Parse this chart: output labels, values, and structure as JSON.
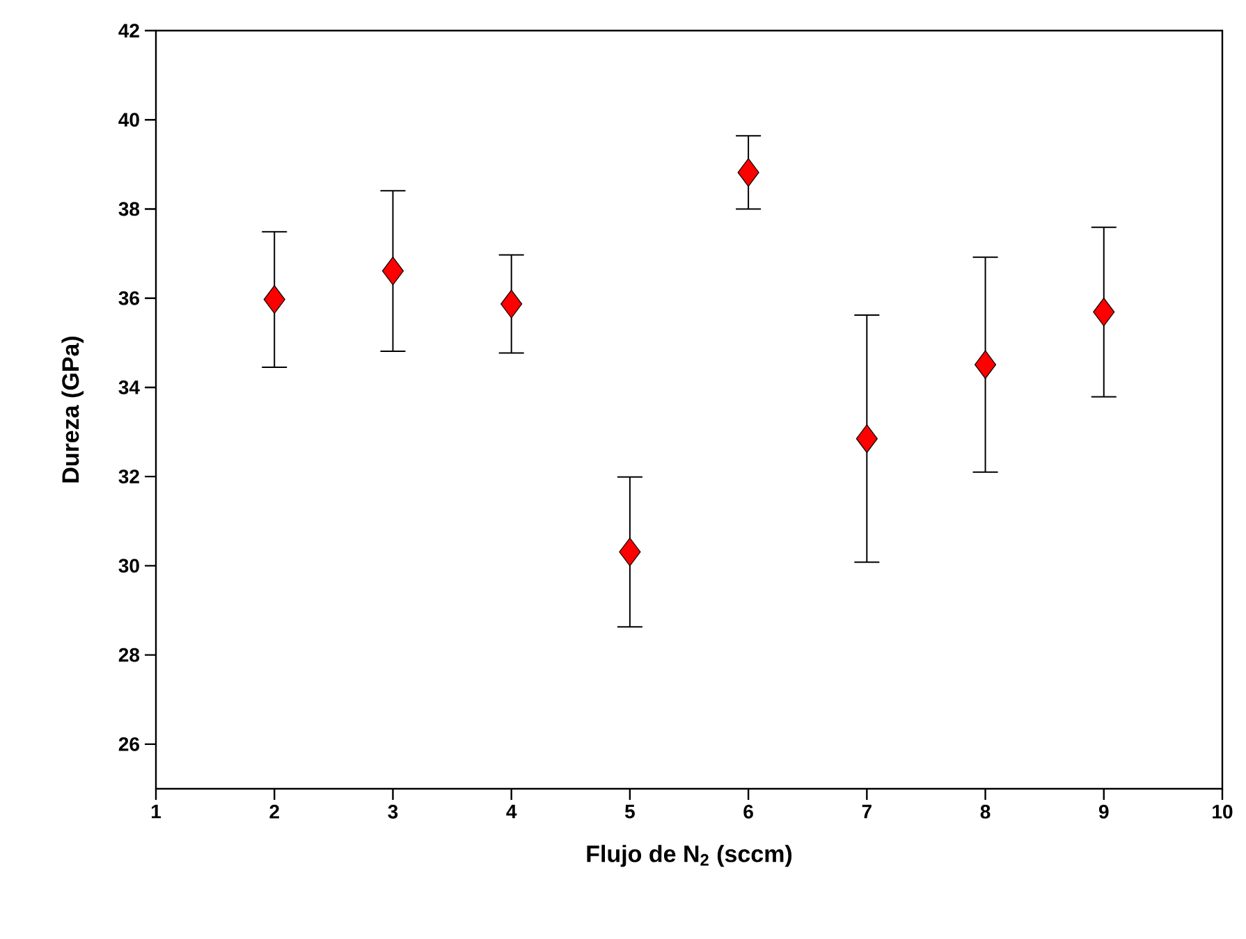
{
  "chart_data": {
    "type": "scatter",
    "xlabel": "Flujo de N$_{2}$ (sccm)",
    "ylabel": "Dureza (GPa)",
    "x": [
      2,
      3,
      4,
      5,
      6,
      7,
      8,
      9
    ],
    "series": [
      {
        "color": "#ff0000",
        "values": [
          35.97,
          36.61,
          35.87,
          30.31,
          38.82,
          32.85,
          34.51,
          35.69
        ],
        "errors": [
          1.52,
          1.8,
          1.1,
          1.68,
          0.82,
          2.77,
          2.41,
          1.9
        ]
      }
    ],
    "xlim": [
      1,
      10
    ],
    "xticks": [
      1,
      2,
      3,
      4,
      5,
      6,
      7,
      8,
      9,
      10
    ],
    "ylim": [
      25,
      42
    ],
    "yticks": [
      26,
      28,
      30,
      32,
      34,
      36,
      38,
      40,
      42
    ],
    "marker": "diamond"
  }
}
